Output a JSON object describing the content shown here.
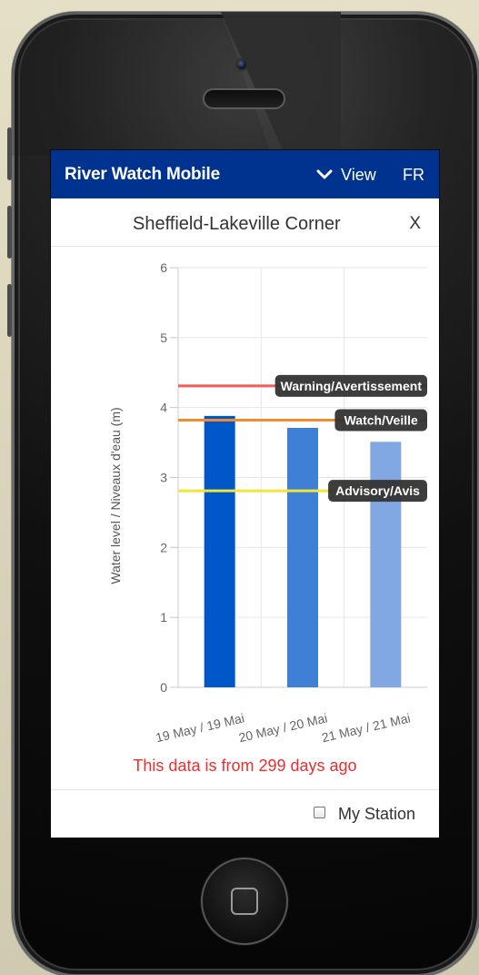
{
  "app": {
    "brand": "River Watch Mobile",
    "view_label": "View",
    "language_label": "FR"
  },
  "station": {
    "name": "Sheffield-Lakeville Corner",
    "close_label": "X"
  },
  "chart_data": {
    "type": "bar",
    "categories": [
      "19 May / 19 Mai",
      "20 May / 20 Mai",
      "21 May / 21 Mai"
    ],
    "values": [
      3.88,
      3.71,
      3.51
    ],
    "ylabel": "Water level / Niveaux d'eau (m)",
    "ylim": [
      0,
      6
    ],
    "yticks": [
      "0",
      "1",
      "2",
      "3",
      "4",
      "5",
      "6"
    ],
    "grid": true,
    "bar_colors": [
      "#0057c8",
      "#3f7fd6",
      "#82a8e4"
    ],
    "thresholds": [
      {
        "label": "Warning/Avertissement",
        "value": 4.31,
        "color": "#f45b5b"
      },
      {
        "label": "Watch/Veille",
        "value": 3.82,
        "color": "#f08c2c"
      },
      {
        "label": "Advisory/Avis",
        "value": 2.81,
        "color": "#f0e638"
      }
    ]
  },
  "status": {
    "message": "This data is from 299 days ago"
  },
  "footer": {
    "my_station_label": "My Station",
    "my_station_checked": false
  },
  "icons": {
    "view": "chevron-down-icon",
    "checkbox": "checkbox-icon",
    "home": "home-button-icon"
  },
  "colors": {
    "nav": "#00338f",
    "status": "#ee2d2d"
  }
}
